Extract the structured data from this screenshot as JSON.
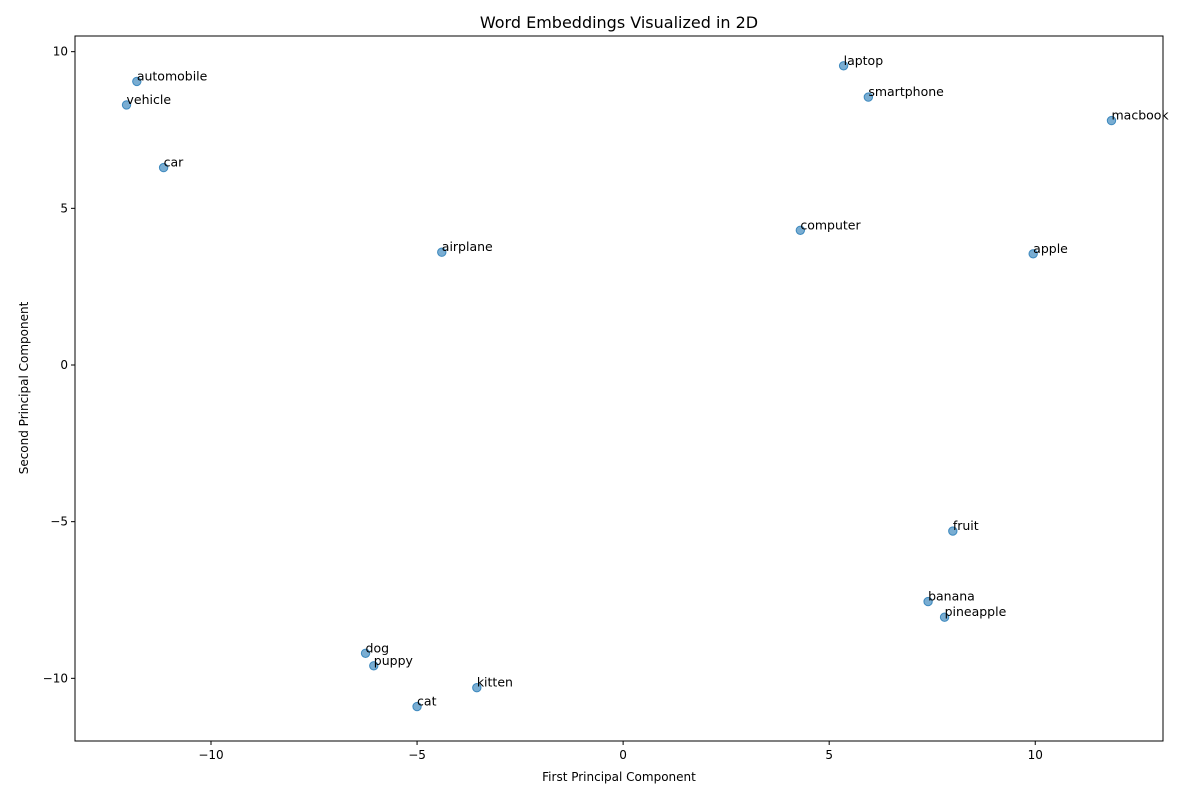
{
  "chart_data": {
    "type": "scatter",
    "title": "Word Embeddings Visualized in 2D",
    "xlabel": "First Principal Component",
    "ylabel": "Second Principal Component",
    "xlim": [
      -13.3,
      13.1
    ],
    "ylim": [
      -12.0,
      10.5
    ],
    "xticks": [
      -10,
      -5,
      0,
      5,
      10
    ],
    "yticks": [
      -10,
      -5,
      0,
      5,
      10
    ],
    "grid": false,
    "point_color": "#1f77b4",
    "points": [
      {
        "label": "laptop",
        "x": 5.35,
        "y": 9.55
      },
      {
        "label": "automobile",
        "x": -11.8,
        "y": 9.05
      },
      {
        "label": "smartphone",
        "x": 5.95,
        "y": 8.55
      },
      {
        "label": "vehicle",
        "x": -12.05,
        "y": 8.3
      },
      {
        "label": "macbook",
        "x": 11.85,
        "y": 7.8
      },
      {
        "label": "car",
        "x": -11.15,
        "y": 6.3
      },
      {
        "label": "computer",
        "x": 4.3,
        "y": 4.3
      },
      {
        "label": "airplane",
        "x": -4.4,
        "y": 3.6
      },
      {
        "label": "apple",
        "x": 9.95,
        "y": 3.55
      },
      {
        "label": "fruit",
        "x": 8.0,
        "y": -5.3
      },
      {
        "label": "banana",
        "x": 7.4,
        "y": -7.55
      },
      {
        "label": "pineapple",
        "x": 7.8,
        "y": -8.05
      },
      {
        "label": "dog",
        "x": -6.25,
        "y": -9.2
      },
      {
        "label": "puppy",
        "x": -6.05,
        "y": -9.6
      },
      {
        "label": "kitten",
        "x": -3.55,
        "y": -10.3
      },
      {
        "label": "cat",
        "x": -5.0,
        "y": -10.9
      }
    ]
  }
}
